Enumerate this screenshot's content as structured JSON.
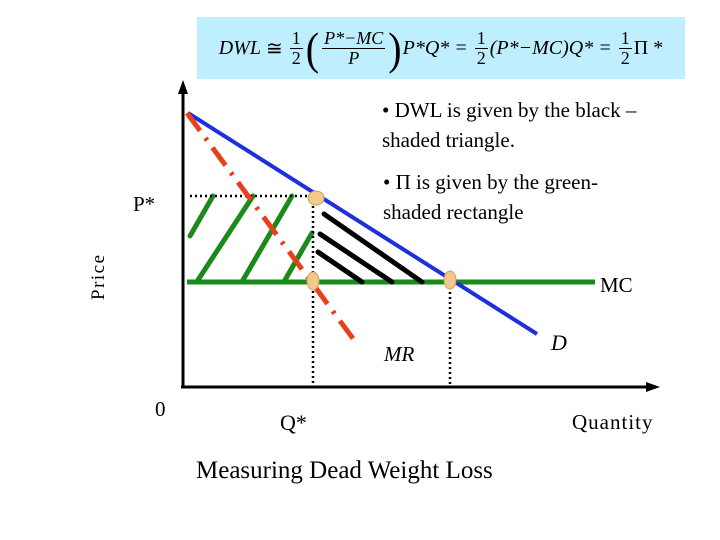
{
  "formula": {
    "lhs": "DWL",
    "approx": "≅",
    "half_num": "1",
    "half_den": "2",
    "ratio_num": "P*−MC",
    "ratio_den": "P",
    "tail1": "P*Q* =",
    "middle": "(P*−MC)Q* =",
    "tail2": "Π *"
  },
  "notes": {
    "dwl_line1": "• DWL is given by the black –",
    "dwl_line2": "shaded triangle.",
    "pi_line1": "• Π is given by the green-",
    "pi_line2": "shaded rectangle"
  },
  "labels": {
    "p_star": "P*",
    "price": "Price",
    "mc": "MC",
    "mr": "MR",
    "d": "D",
    "zero": "0",
    "q_star": "Q*",
    "quantity": "Quantity",
    "title": "Measuring Dead Weight Loss"
  },
  "colors": {
    "formula_bg": "#bfeeff",
    "demand": "#1f2fe0",
    "mr": "#e8401c",
    "mc": "#1a8a1a",
    "dwl_hatch": "#000000",
    "profit_hatch": "#1a8a1a",
    "marker": "#f2c98a"
  }
}
